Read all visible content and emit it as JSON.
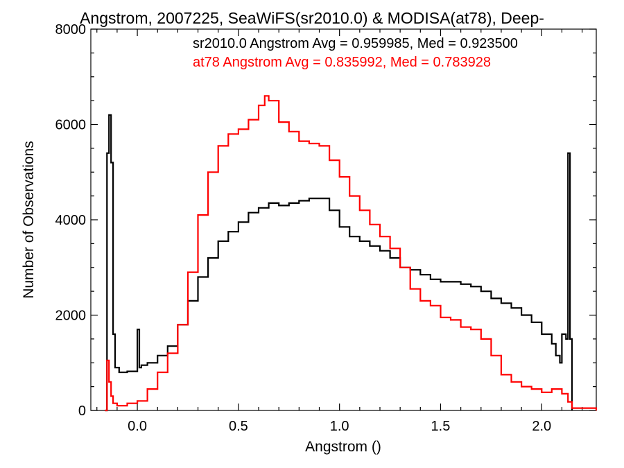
{
  "chart_data": {
    "type": "line",
    "title": "Angstrom, 2007225, SeaWiFS(sr2010.0) & MODISA(at78), Deep-",
    "xlabel": "Angstrom ()",
    "ylabel": "Number of Observations",
    "xlim": [
      -0.23,
      2.27
    ],
    "ylim": [
      0,
      8000
    ],
    "xticks": [
      0.0,
      0.5,
      1.0,
      1.5,
      2.0
    ],
    "xtick_labels": [
      "0.0",
      "0.5",
      "1.0",
      "1.5",
      "2.0"
    ],
    "yticks": [
      0,
      2000,
      4000,
      6000,
      8000
    ],
    "ytick_labels": [
      "0",
      "2000",
      "4000",
      "6000",
      "8000"
    ],
    "grid": false,
    "annotations": [
      {
        "text": "sr2010.0 Angstrom Avg = 0.959985, Med = 0.923500",
        "color": "#000000"
      },
      {
        "text": "at78 Angstrom Avg = 0.835992, Med = 0.783928",
        "color": "#ff0000"
      }
    ],
    "series": [
      {
        "color": "#000000",
        "style": "step",
        "x": [
          -0.16,
          -0.15,
          -0.14,
          -0.13,
          -0.12,
          -0.11,
          -0.09,
          -0.05,
          0.0,
          0.01,
          0.02,
          0.05,
          0.1,
          0.15,
          0.2,
          0.25,
          0.3,
          0.35,
          0.4,
          0.45,
          0.5,
          0.55,
          0.6,
          0.65,
          0.7,
          0.75,
          0.8,
          0.85,
          0.9,
          0.95,
          1.0,
          1.05,
          1.1,
          1.15,
          1.2,
          1.25,
          1.3,
          1.35,
          1.4,
          1.45,
          1.5,
          1.55,
          1.6,
          1.65,
          1.7,
          1.75,
          1.8,
          1.85,
          1.9,
          1.95,
          2.0,
          2.05,
          2.07,
          2.09,
          2.1,
          2.12,
          2.13,
          2.14,
          2.15
        ],
        "y": [
          0,
          5400,
          6200,
          5200,
          1600,
          900,
          800,
          820,
          1700,
          900,
          950,
          1000,
          1150,
          1350,
          1800,
          2300,
          2800,
          3200,
          3550,
          3750,
          3950,
          4150,
          4250,
          4350,
          4300,
          4350,
          4400,
          4450,
          4450,
          4200,
          3850,
          3650,
          3550,
          3450,
          3350,
          3200,
          3000,
          2950,
          2850,
          2750,
          2700,
          2700,
          2650,
          2600,
          2500,
          2350,
          2250,
          2150,
          2000,
          1850,
          1600,
          1400,
          1150,
          1000,
          1600,
          1500,
          5400,
          1500,
          0
        ]
      },
      {
        "color": "#ff0000",
        "style": "step",
        "x": [
          -0.16,
          -0.15,
          -0.14,
          -0.13,
          -0.12,
          -0.1,
          -0.05,
          0.0,
          0.05,
          0.1,
          0.15,
          0.2,
          0.25,
          0.3,
          0.35,
          0.4,
          0.45,
          0.5,
          0.55,
          0.6,
          0.63,
          0.65,
          0.7,
          0.75,
          0.8,
          0.85,
          0.9,
          0.95,
          1.0,
          1.05,
          1.1,
          1.15,
          1.2,
          1.25,
          1.3,
          1.35,
          1.4,
          1.45,
          1.5,
          1.55,
          1.6,
          1.65,
          1.7,
          1.75,
          1.8,
          1.85,
          1.9,
          1.95,
          2.0,
          2.05,
          2.1,
          2.13,
          2.15,
          2.27
        ],
        "y": [
          0,
          1050,
          600,
          300,
          150,
          100,
          150,
          200,
          450,
          800,
          1200,
          1800,
          2900,
          4100,
          5000,
          5550,
          5800,
          5900,
          6100,
          6400,
          6600,
          6500,
          6050,
          5850,
          5650,
          5600,
          5550,
          5250,
          4900,
          4500,
          4200,
          3900,
          3650,
          3400,
          3000,
          2550,
          2300,
          2200,
          1950,
          1900,
          1750,
          1700,
          1500,
          1150,
          750,
          600,
          500,
          450,
          380,
          450,
          350,
          180,
          50,
          0
        ]
      }
    ]
  }
}
